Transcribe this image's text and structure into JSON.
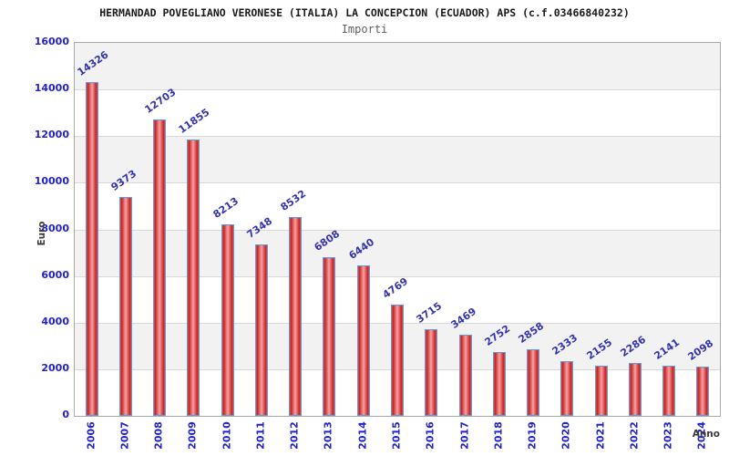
{
  "chart_data": {
    "type": "bar",
    "title": "HERMANDAD POVEGLIANO VERONESE (ITALIA) LA CONCEPCION (ECUADOR) APS (c.f.03466840232)",
    "subtitle": "Importi",
    "xlabel": "Anno",
    "ylabel": "Euro",
    "categories": [
      "2006",
      "2007",
      "2008",
      "2009",
      "2010",
      "2011",
      "2012",
      "2013",
      "2014",
      "2015",
      "2016",
      "2017",
      "2018",
      "2019",
      "2020",
      "2021",
      "2022",
      "2023",
      "2024"
    ],
    "values": [
      14326,
      9373,
      12703,
      11855,
      8213,
      7348,
      8532,
      6808,
      6440,
      4769,
      3715,
      3469,
      2752,
      2858,
      2333,
      2155,
      2286,
      2141,
      2098
    ],
    "value_labels": [
      "14326",
      "9373",
      "12703",
      "11855",
      "8213",
      "7348",
      "8532",
      "6808",
      "6440",
      "4769",
      "3715",
      "3469",
      "2752",
      "2858",
      "2333",
      "2155",
      "2286",
      "2141",
      "2098"
    ],
    "ylim": [
      0,
      16000
    ],
    "ytick_step": 2000,
    "yticks": [
      "0",
      "2000",
      "4000",
      "6000",
      "8000",
      "10000",
      "12000",
      "14000",
      "16000"
    ],
    "legend": "none",
    "grid": "horizontal gridlines every 2000 with alternating shaded bands",
    "band_pattern": "gray band from 16000-14000, then alternating white/gray every 2000 down to 0",
    "colors": {
      "bar_edge_red": "#c92020",
      "bar_mid_red": "#f5a3a3",
      "bar_border_blue": "#5b9ce0",
      "tick_label_blue": "#2222cc",
      "value_label_navy": "#3434ad",
      "band_gray": "#f2f2f2",
      "gridline_gray": "#d8d8d8",
      "plot_border_gray": "#a8a8a8",
      "title_color": "#1a1a1a",
      "subtitle_color": "#5f5f5f",
      "axis_label_color": "#3a3a3a"
    }
  }
}
